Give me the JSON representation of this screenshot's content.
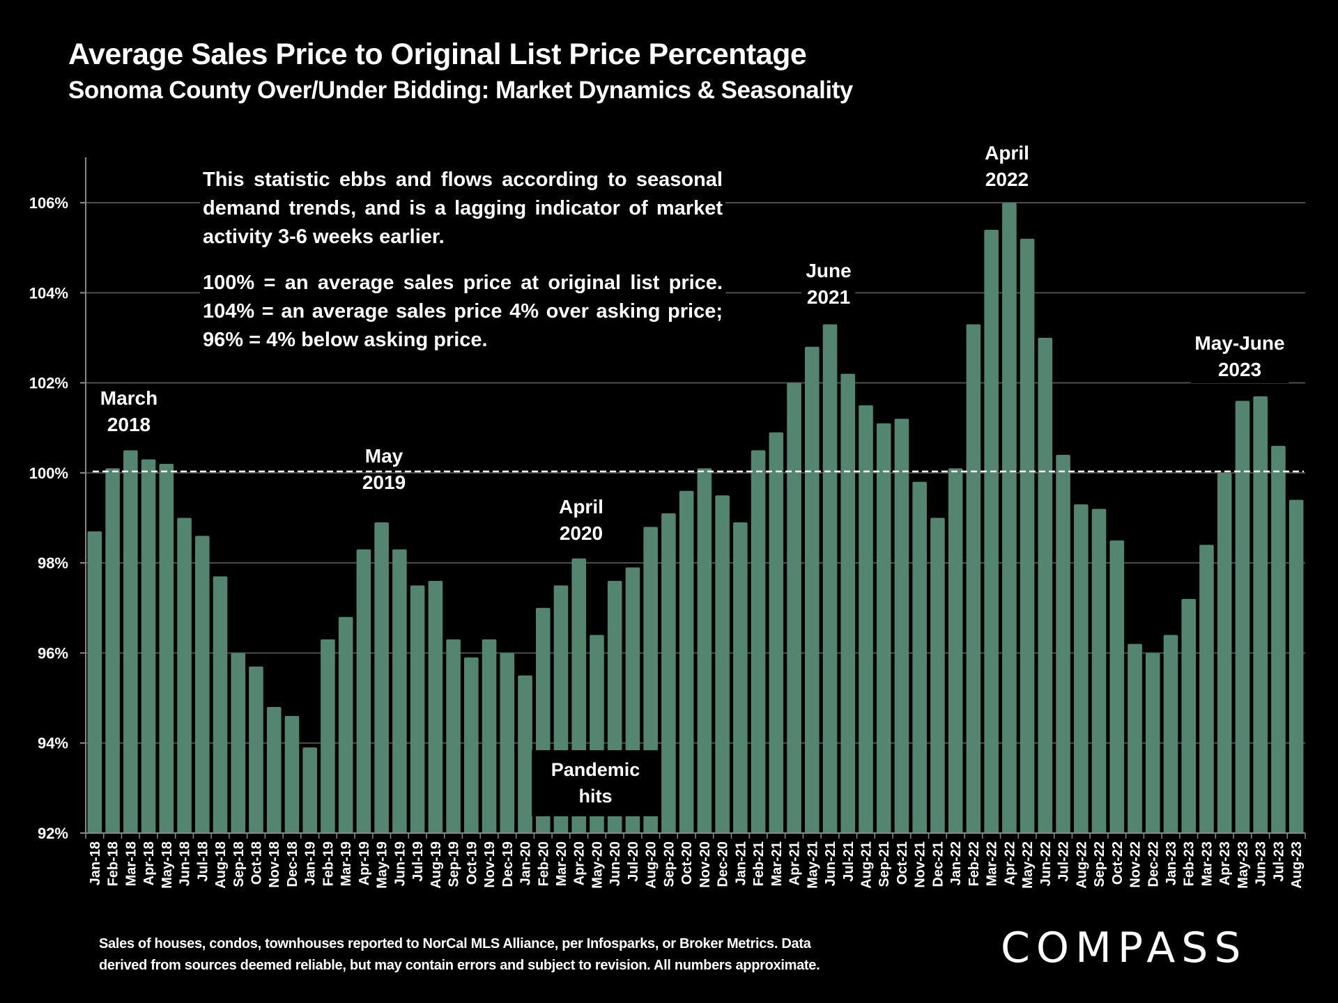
{
  "header": {
    "title": "Average Sales Price to Original List Price Percentage",
    "subtitle": "Sonoma County Over/Under Bidding: Market Dynamics & Seasonality"
  },
  "note": {
    "paragraph1": "This statistic ebbs and flows according to seasonal demand trends, and is a lagging indicator of market activity 3-6 weeks earlier.",
    "paragraph2": "100% = an average sales price at original list price. 104% = an average sales price 4% over asking price; 96% = 4% below asking price."
  },
  "annotations": [
    {
      "line1": "March",
      "line2": "2018",
      "category": "Mar-18"
    },
    {
      "line1": "May",
      "line2": "2019",
      "category": "May-19"
    },
    {
      "line1": "April",
      "line2": "2020",
      "category": "Apr-20"
    },
    {
      "line1": "June",
      "line2": "2021",
      "category": "Jun-21"
    },
    {
      "line1": "April",
      "line2": "2022",
      "category": "Apr-22"
    },
    {
      "line1": "May-June",
      "line2": "2023",
      "category": "May-23"
    }
  ],
  "pandemic": {
    "line1": "Pandemic",
    "line2": "hits"
  },
  "footer": {
    "line1": "Sales of houses, condos, townhouses reported to NorCal MLS Alliance, per Infosparks, or Broker Metrics. Data",
    "line2": "derived from sources deemed reliable, but may contain errors and subject to revision. All numbers approximate."
  },
  "logo": {
    "text": "COMPASS"
  },
  "colors": {
    "bar": "#548571",
    "background": "#000000",
    "text": "#ffffff",
    "grid": "#4d4d4d",
    "reference_line": "#ffffff"
  },
  "chart_data": {
    "type": "bar",
    "title": "Average Sales Price to Original List Price Percentage",
    "subtitle": "Sonoma County Over/Under Bidding: Market Dynamics & Seasonality",
    "xlabel": "",
    "ylabel": "",
    "ylim": [
      92,
      107
    ],
    "yticks": [
      92,
      94,
      96,
      98,
      100,
      102,
      104,
      106
    ],
    "ytick_labels": [
      "92%",
      "94%",
      "96%",
      "98%",
      "100%",
      "102%",
      "104%",
      "106%"
    ],
    "reference_line": {
      "value": 100,
      "style": "dashed"
    },
    "grid": true,
    "legend": "none",
    "categories": [
      "Jan-18",
      "Feb-18",
      "Mar-18",
      "Apr-18",
      "May-18",
      "Jun-18",
      "Jul-18",
      "Aug-18",
      "Sep-18",
      "Oct-18",
      "Nov-18",
      "Dec-18",
      "Jan-19",
      "Feb-19",
      "Mar-19",
      "Apr-19",
      "May-19",
      "Jun-19",
      "Jul-19",
      "Aug-19",
      "Sep-19",
      "Oct-19",
      "Nov-19",
      "Dec-19",
      "Jan-20",
      "Feb-20",
      "Mar-20",
      "Apr-20",
      "May-20",
      "Jun-20",
      "Jul-20",
      "Aug-20",
      "Sep-20",
      "Oct-20",
      "Nov-20",
      "Dec-20",
      "Jan-21",
      "Feb-21",
      "Mar-21",
      "Apr-21",
      "May-21",
      "Jun-21",
      "Jul-21",
      "Aug-21",
      "Sep-21",
      "Oct-21",
      "Nov-21",
      "Dec-21",
      "Jan-22",
      "Feb-22",
      "Mar-22",
      "Apr-22",
      "May-22",
      "Jun-22",
      "Jul-22",
      "Aug-22",
      "Sep-22",
      "Oct-22",
      "Nov-22",
      "Dec-22",
      "Jan-23",
      "Feb-23",
      "Mar-23",
      "Apr-23",
      "May-23",
      "Jun-23",
      "Jul-23",
      "Aug-23"
    ],
    "values": [
      98.7,
      100.1,
      100.5,
      100.3,
      100.2,
      99.0,
      98.6,
      97.7,
      96.0,
      95.7,
      94.8,
      94.6,
      93.9,
      96.3,
      96.8,
      98.3,
      98.9,
      98.3,
      97.5,
      97.6,
      96.3,
      95.9,
      96.3,
      96.0,
      95.5,
      97.0,
      97.5,
      98.1,
      96.4,
      97.6,
      97.9,
      98.8,
      99.1,
      99.6,
      100.1,
      99.5,
      98.9,
      100.5,
      100.9,
      102.0,
      102.8,
      103.3,
      102.2,
      101.5,
      101.1,
      101.2,
      99.8,
      99.0,
      100.1,
      103.3,
      105.4,
      106.0,
      105.2,
      103.0,
      100.4,
      99.3,
      99.2,
      98.5,
      96.2,
      96.0,
      96.4,
      97.2,
      98.4,
      100.0,
      101.6,
      101.7,
      100.6,
      99.4
    ]
  }
}
